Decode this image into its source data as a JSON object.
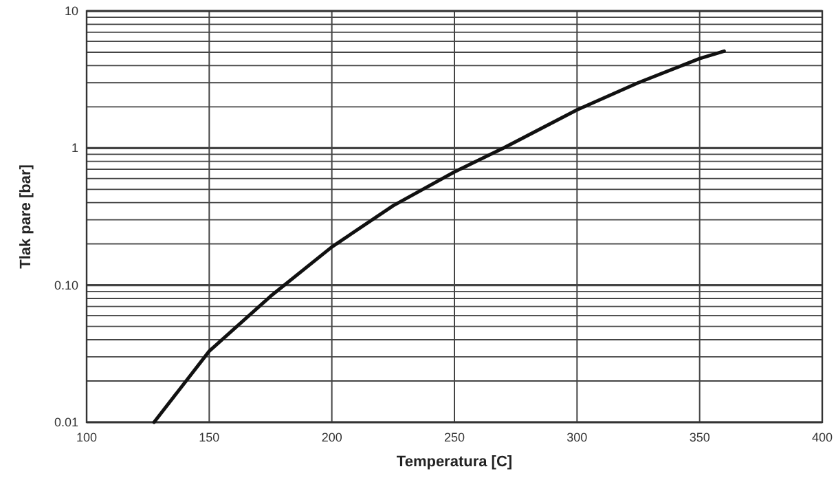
{
  "chart_data": {
    "type": "line",
    "xlabel": "Temperatura [C]",
    "ylabel": "Tlak pare [bar]",
    "log": "y",
    "grid": true,
    "marker": "none",
    "line_style": "solid",
    "x": [
      127.5,
      150,
      175,
      200,
      225,
      250,
      270,
      300,
      325,
      350,
      360
    ],
    "series": [
      {
        "color": "#111111",
        "values": [
          0.01,
          0.033,
          0.083,
          0.19,
          0.38,
          0.67,
          1.0,
          1.9,
          3.0,
          4.5,
          5.1
        ]
      }
    ],
    "xlim": [
      100,
      400
    ],
    "xticks": [
      100,
      150,
      200,
      250,
      300,
      350,
      400
    ],
    "ylim": [
      0.01,
      10
    ],
    "yticks": [
      "0.01",
      {
        "value": 0.02,
        "label": null
      },
      {
        "value": 0.03,
        "label": null
      },
      {
        "value": 0.04,
        "label": null
      },
      {
        "value": 0.05,
        "label": null
      },
      {
        "value": 0.06,
        "label": null
      },
      {
        "value": 0.07,
        "label": null
      },
      {
        "value": 0.08,
        "label": null
      },
      {
        "value": 0.09,
        "label": null
      },
      {
        "value": 0.1,
        "label": "0.10"
      },
      {
        "value": 0.2,
        "label": null
      },
      {
        "value": 0.3,
        "label": null
      },
      {
        "value": 0.4,
        "label": null
      },
      {
        "value": 0.5,
        "label": null
      },
      {
        "value": 0.6,
        "label": null
      },
      {
        "value": 0.7,
        "label": null
      },
      {
        "value": 0.8,
        "label": null
      },
      {
        "value": 0.9,
        "label": null
      },
      1,
      {
        "value": 2,
        "label": null
      },
      {
        "value": 3,
        "label": null
      },
      {
        "value": 4,
        "label": null
      },
      {
        "value": 5,
        "label": null
      },
      {
        "value": 6,
        "label": null
      },
      {
        "value": 7,
        "label": null
      },
      {
        "value": 8,
        "label": null
      },
      {
        "value": 9,
        "label": null
      },
      10
    ]
  }
}
